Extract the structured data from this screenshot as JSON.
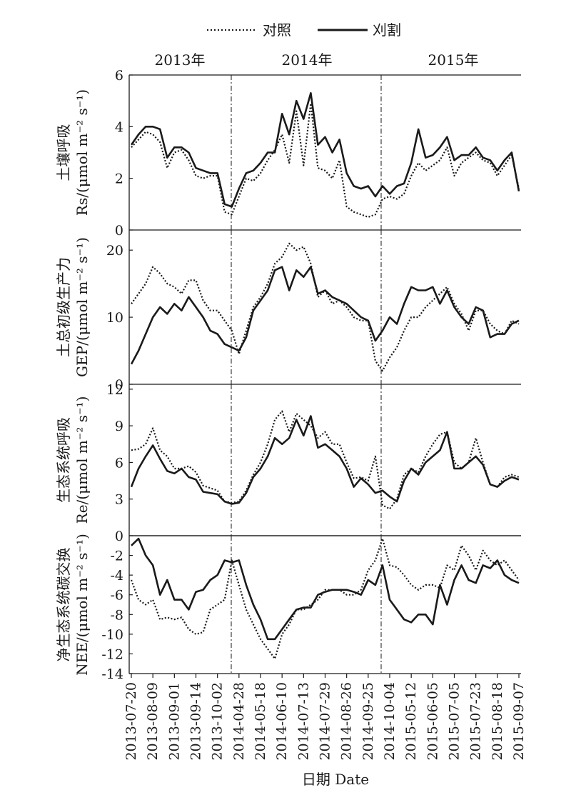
{
  "legend": {
    "items": [
      {
        "label": "对照",
        "style": "dotted"
      },
      {
        "label": "刈割",
        "style": "solid"
      }
    ],
    "placement": "top-center"
  },
  "years": [
    "2013年",
    "2014年",
    "2015年"
  ],
  "x_axis": {
    "label": "日期 Date",
    "tick_labels": [
      "2013-07-20",
      "2013-08-09",
      "2013-09-01",
      "2013-09-14",
      "2013-10-02",
      "2014-04-28",
      "2014-05-18",
      "2014-06-10",
      "2014-07-13",
      "2014-07-29",
      "2014-08-26",
      "2014-09-25",
      "2014-10-04",
      "2015-05-12",
      "2015-06-05",
      "2015-07-05",
      "2015-07-23",
      "2015-08-18",
      "2015-09-07"
    ],
    "year_breaks_after": [
      "2014-04-28",
      "2014-10-04"
    ]
  },
  "chart_data": [
    {
      "type": "line",
      "panel": "Rs",
      "ylabel_cn": "土壤呼吸",
      "ylabel": "Rs/(μmol m⁻² s⁻¹)",
      "ylim": [
        0,
        6
      ],
      "yticks": [
        "0",
        "2",
        "4",
        "6"
      ],
      "grid": false,
      "series": [
        {
          "name": "刈割",
          "values": [
            3.3,
            3.7,
            4.0,
            4.0,
            3.9,
            2.8,
            3.2,
            3.2,
            3.0,
            2.4,
            2.3,
            2.2,
            2.2,
            1.0,
            0.9,
            1.6,
            2.2,
            2.3,
            2.6,
            3.0,
            3.0,
            4.5,
            3.7,
            5.0,
            4.3,
            5.3,
            3.3,
            3.6,
            3.0,
            3.5,
            2.2,
            1.7,
            1.6,
            1.7,
            1.3,
            1.7,
            1.4,
            1.7,
            1.8,
            2.6,
            3.9,
            2.8,
            2.9,
            3.2,
            3.6,
            2.7,
            2.9,
            2.9,
            3.2,
            2.8,
            2.7,
            2.3,
            2.7,
            3.0,
            1.5
          ]
        },
        {
          "name": "对照",
          "values": [
            3.2,
            3.5,
            3.8,
            3.7,
            3.4,
            2.4,
            3.0,
            3.1,
            2.7,
            2.1,
            2.0,
            2.1,
            2.1,
            0.7,
            0.6,
            1.3,
            2.0,
            1.9,
            2.2,
            2.7,
            3.1,
            3.7,
            2.6,
            4.6,
            2.5,
            4.9,
            2.4,
            2.3,
            2.0,
            2.7,
            0.9,
            0.7,
            0.6,
            0.5,
            0.6,
            1.2,
            1.3,
            1.2,
            1.4,
            2.1,
            2.6,
            2.3,
            2.5,
            2.7,
            3.2,
            2.1,
            2.6,
            2.8,
            3.0,
            2.7,
            2.6,
            2.1,
            2.5,
            2.9,
            1.6
          ]
        }
      ]
    },
    {
      "type": "line",
      "panel": "GEP",
      "ylabel_cn": "土总初级生产力",
      "ylabel": "GEP/(μmol m⁻² s⁻¹)",
      "ylim": [
        0,
        23
      ],
      "yticks": [
        "0",
        "10",
        "20"
      ],
      "grid": false,
      "series": [
        {
          "name": "刈割",
          "values": [
            3.0,
            5.0,
            7.5,
            10.0,
            11.5,
            10.5,
            12.0,
            11.0,
            13.0,
            11.5,
            10.0,
            8.0,
            7.5,
            6.0,
            5.5,
            5.0,
            7.0,
            11.0,
            12.5,
            14.0,
            17.0,
            17.5,
            14.0,
            17.0,
            16.0,
            17.5,
            13.5,
            14.0,
            13.0,
            12.5,
            12.0,
            11.0,
            10.0,
            9.5,
            6.5,
            8.0,
            10.0,
            9.0,
            12.0,
            14.5,
            14.0,
            14.0,
            14.5,
            12.0,
            14.0,
            11.5,
            10.0,
            9.0,
            11.5,
            11.0,
            7.0,
            7.5,
            7.5,
            9.0,
            9.5
          ]
        },
        {
          "name": "对照",
          "values": [
            12.0,
            13.5,
            15.0,
            17.5,
            16.5,
            15.0,
            14.5,
            13.5,
            15.5,
            15.5,
            12.5,
            11.0,
            11.0,
            9.5,
            8.0,
            4.5,
            8.0,
            11.5,
            13.0,
            15.0,
            18.0,
            19.0,
            21.0,
            20.0,
            20.5,
            18.0,
            13.0,
            14.0,
            12.0,
            12.5,
            11.5,
            10.0,
            9.5,
            9.5,
            3.5,
            2.0,
            4.0,
            5.5,
            8.0,
            10.0,
            10.0,
            11.5,
            12.5,
            13.5,
            14.5,
            12.0,
            10.5,
            8.0,
            11.0,
            11.0,
            9.0,
            8.0,
            7.5,
            9.5,
            9.0
          ]
        }
      ]
    },
    {
      "type": "line",
      "panel": "Re",
      "ylabel_cn": "生态系统呼吸",
      "ylabel": "Re/(μmol m⁻² s⁻¹)",
      "ylim": [
        0,
        12.4
      ],
      "yticks": [
        "3",
        "6",
        "9",
        "12"
      ],
      "grid": false,
      "series": [
        {
          "name": "刈割",
          "values": [
            4.0,
            5.5,
            6.5,
            7.4,
            6.3,
            5.3,
            5.1,
            5.5,
            4.8,
            4.6,
            3.6,
            3.5,
            3.4,
            2.8,
            2.6,
            2.7,
            3.5,
            4.8,
            5.5,
            6.5,
            8.0,
            7.5,
            8.0,
            9.5,
            8.2,
            9.8,
            7.2,
            7.5,
            7.0,
            6.5,
            5.5,
            4.0,
            4.7,
            4.2,
            3.5,
            3.7,
            3.2,
            2.8,
            4.5,
            5.5,
            5.0,
            6.0,
            6.5,
            7.0,
            8.5,
            5.5,
            5.5,
            6.0,
            6.5,
            5.8,
            4.2,
            4.0,
            4.5,
            4.8,
            4.6
          ]
        },
        {
          "name": "对照",
          "values": [
            7.0,
            7.1,
            7.5,
            8.8,
            7.0,
            6.5,
            5.5,
            5.5,
            5.7,
            5.2,
            4.1,
            3.9,
            3.7,
            2.8,
            2.7,
            2.8,
            3.7,
            5.0,
            6.0,
            7.5,
            9.5,
            10.2,
            8.5,
            10.0,
            9.5,
            9.0,
            8.0,
            8.5,
            7.5,
            7.5,
            6.0,
            4.7,
            4.8,
            4.5,
            6.5,
            2.5,
            2.2,
            3.0,
            5.0,
            5.5,
            5.2,
            6.5,
            7.5,
            8.3,
            8.5,
            6.0,
            5.5,
            6.0,
            8.0,
            6.0,
            4.2,
            4.0,
            4.8,
            5.0,
            4.8
          ]
        }
      ]
    },
    {
      "type": "line",
      "panel": "NEE",
      "ylabel_cn": "净生态系统碳交换",
      "ylabel": "NEE/(μmol m⁻² s⁻¹)",
      "ylim": [
        -14,
        0
      ],
      "yticks": [
        "0",
        "-2",
        "-4",
        "-6",
        "-8",
        "-10",
        "-12",
        "-14"
      ],
      "grid": false,
      "series": [
        {
          "name": "刈割",
          "values": [
            -1.0,
            -0.3,
            -2.0,
            -3.0,
            -6.0,
            -4.5,
            -6.5,
            -6.5,
            -7.5,
            -5.7,
            -5.5,
            -4.5,
            -4.0,
            -2.5,
            -2.7,
            -2.5,
            -5.0,
            -7.0,
            -8.5,
            -10.5,
            -10.5,
            -9.5,
            -8.5,
            -7.5,
            -7.3,
            -7.3,
            -6.0,
            -5.7,
            -5.5,
            -5.5,
            -5.5,
            -5.7,
            -6.0,
            -4.5,
            -5.0,
            -3.0,
            -6.5,
            -7.5,
            -8.5,
            -8.8,
            -8.0,
            -8.0,
            -9.0,
            -5.0,
            -7.0,
            -4.5,
            -3.0,
            -4.5,
            -4.8,
            -3.0,
            -3.3,
            -2.5,
            -4.0,
            -4.5,
            -4.8
          ]
        },
        {
          "name": "对照",
          "values": [
            -4.5,
            -6.5,
            -7.0,
            -6.5,
            -8.5,
            -8.3,
            -8.5,
            -8.3,
            -9.5,
            -10.0,
            -9.8,
            -7.5,
            -7.0,
            -6.5,
            -2.5,
            -5.0,
            -7.5,
            -9.0,
            -10.5,
            -11.5,
            -12.5,
            -10.0,
            -9.0,
            -7.5,
            -7.5,
            -7.0,
            -6.5,
            -5.5,
            -5.5,
            -5.5,
            -6.0,
            -6.0,
            -5.5,
            -3.5,
            -2.5,
            -0.3,
            -3.0,
            -3.2,
            -4.0,
            -5.0,
            -5.5,
            -5.0,
            -5.0,
            -5.3,
            -3.0,
            -3.5,
            -1.0,
            -2.0,
            -3.5,
            -1.5,
            -2.5,
            -3.0,
            -2.5,
            -3.5,
            -4.5
          ]
        }
      ]
    }
  ]
}
